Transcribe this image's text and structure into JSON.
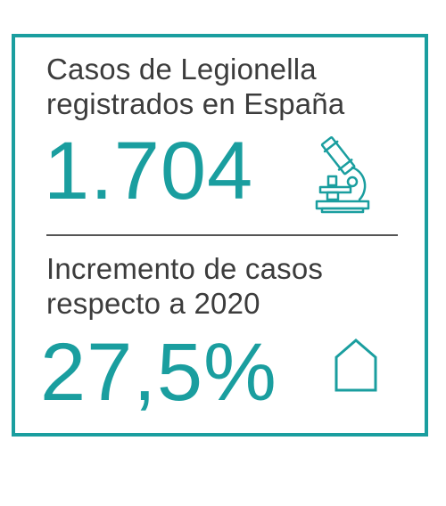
{
  "card": {
    "accent_color": "#1a9e9f",
    "text_color": "#3c3c3c",
    "stat_1": {
      "label_line_1": "Casos de Legionella",
      "label_line_2": "registrados en España",
      "value": "1.704",
      "icon": "microscope-icon"
    },
    "stat_2": {
      "label_line_1": "Incremento de casos",
      "label_line_2": "respecto a 2020",
      "value": "27,5%",
      "icon": "house-icon"
    }
  }
}
